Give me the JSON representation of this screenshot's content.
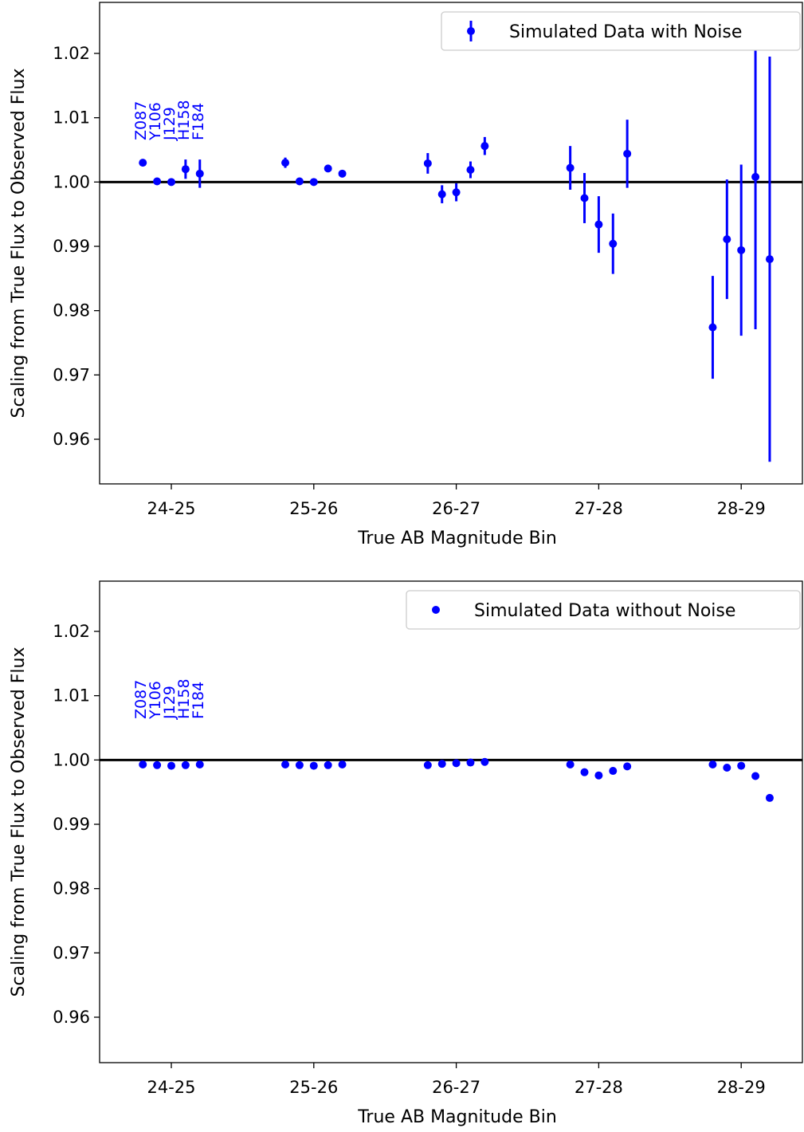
{
  "chart_data": [
    {
      "type": "scatter",
      "panel": "top",
      "xlabel": "True AB Magnitude Bin",
      "ylabel": "Scaling from True Flux to Observed Flux",
      "categories": [
        "24-25",
        "25-26",
        "26-27",
        "27-28",
        "28-29"
      ],
      "ylim": [
        0.955,
        1.0275
      ],
      "yticks": [
        0.96,
        0.97,
        0.98,
        0.99,
        1.0,
        1.01,
        1.02
      ],
      "ytick_labels": [
        "0.96",
        "0.97",
        "0.98",
        "0.99",
        "1.00",
        "1.01",
        "1.02"
      ],
      "reference_line": 1.0,
      "filter_labels": [
        "Z087",
        "Y106",
        "J129",
        "H158",
        "F184"
      ],
      "filter_offsets": [
        -0.2,
        -0.1,
        0.0,
        0.1,
        0.2
      ],
      "legend": {
        "label": "Simulated Data with Noise",
        "position": "top-right",
        "marker": "errorbar"
      },
      "color": "#0000ff",
      "series": [
        {
          "name": "Simulated Data with Noise",
          "points": [
            {
              "bin": "24-25",
              "filter": "Z087",
              "y": 1.003,
              "err": 0.0
            },
            {
              "bin": "24-25",
              "filter": "Y106",
              "y": 1.0001,
              "err": 0.0
            },
            {
              "bin": "24-25",
              "filter": "J129",
              "y": 1.0,
              "err": 0.0
            },
            {
              "bin": "24-25",
              "filter": "H158",
              "y": 1.002,
              "err": 0.0015
            },
            {
              "bin": "24-25",
              "filter": "F184",
              "y": 1.0013,
              "err": 0.0022
            },
            {
              "bin": "25-26",
              "filter": "Z087",
              "y": 1.003,
              "err": 0.0008
            },
            {
              "bin": "25-26",
              "filter": "Y106",
              "y": 1.0001,
              "err": 0.0
            },
            {
              "bin": "25-26",
              "filter": "J129",
              "y": 1.0,
              "err": 0.0
            },
            {
              "bin": "25-26",
              "filter": "H158",
              "y": 1.0021,
              "err": 0.0005
            },
            {
              "bin": "25-26",
              "filter": "F184",
              "y": 1.0013,
              "err": 0.0005
            },
            {
              "bin": "26-27",
              "filter": "Z087",
              "y": 1.0029,
              "err": 0.0016
            },
            {
              "bin": "26-27",
              "filter": "Y106",
              "y": 0.9981,
              "err": 0.0014
            },
            {
              "bin": "26-27",
              "filter": "J129",
              "y": 0.9984,
              "err": 0.0014
            },
            {
              "bin": "26-27",
              "filter": "H158",
              "y": 1.0019,
              "err": 0.0013
            },
            {
              "bin": "26-27",
              "filter": "F184",
              "y": 1.0056,
              "err": 0.0014
            },
            {
              "bin": "27-28",
              "filter": "Z087",
              "y": 1.0022,
              "err": 0.0034
            },
            {
              "bin": "27-28",
              "filter": "Y106",
              "y": 0.9975,
              "err": 0.0039
            },
            {
              "bin": "27-28",
              "filter": "J129",
              "y": 0.9934,
              "err": 0.0044
            },
            {
              "bin": "27-28",
              "filter": "H158",
              "y": 0.9904,
              "err": 0.0047
            },
            {
              "bin": "27-28",
              "filter": "F184",
              "y": 1.0044,
              "err": 0.0053
            },
            {
              "bin": "28-29",
              "filter": "Z087",
              "y": 0.9774,
              "err": 0.008
            },
            {
              "bin": "28-29",
              "filter": "Y106",
              "y": 0.9911,
              "err": 0.0093
            },
            {
              "bin": "28-29",
              "filter": "J129",
              "y": 0.9894,
              "err": 0.0133
            },
            {
              "bin": "28-29",
              "filter": "H158",
              "y": 1.0008,
              "err": 0.0237
            },
            {
              "bin": "28-29",
              "filter": "F184",
              "y": 0.988,
              "err": 0.0315
            }
          ]
        }
      ]
    },
    {
      "type": "scatter",
      "panel": "bottom",
      "xlabel": "True AB Magnitude Bin",
      "ylabel": "Scaling from True Flux to Observed Flux",
      "categories": [
        "24-25",
        "25-26",
        "26-27",
        "27-28",
        "28-29"
      ],
      "ylim": [
        0.955,
        1.0275
      ],
      "yticks": [
        0.96,
        0.97,
        0.98,
        0.99,
        1.0,
        1.01,
        1.02
      ],
      "ytick_labels": [
        "0.96",
        "0.97",
        "0.98",
        "0.99",
        "1.00",
        "1.01",
        "1.02"
      ],
      "reference_line": 1.0,
      "filter_labels": [
        "Z087",
        "Y106",
        "J129",
        "H158",
        "F184"
      ],
      "filter_offsets": [
        -0.2,
        -0.1,
        0.0,
        0.1,
        0.2
      ],
      "legend": {
        "label": "Simulated Data without Noise",
        "position": "top-right",
        "marker": "dot"
      },
      "color": "#0000ff",
      "series": [
        {
          "name": "Simulated Data without Noise",
          "points": [
            {
              "bin": "24-25",
              "filter": "Z087",
              "y": 0.9993
            },
            {
              "bin": "24-25",
              "filter": "Y106",
              "y": 0.9992
            },
            {
              "bin": "24-25",
              "filter": "J129",
              "y": 0.9991
            },
            {
              "bin": "24-25",
              "filter": "H158",
              "y": 0.9992
            },
            {
              "bin": "24-25",
              "filter": "F184",
              "y": 0.9993
            },
            {
              "bin": "25-26",
              "filter": "Z087",
              "y": 0.9993
            },
            {
              "bin": "25-26",
              "filter": "Y106",
              "y": 0.9992
            },
            {
              "bin": "25-26",
              "filter": "J129",
              "y": 0.9991
            },
            {
              "bin": "25-26",
              "filter": "H158",
              "y": 0.9992
            },
            {
              "bin": "25-26",
              "filter": "F184",
              "y": 0.9993
            },
            {
              "bin": "26-27",
              "filter": "Z087",
              "y": 0.9992
            },
            {
              "bin": "26-27",
              "filter": "Y106",
              "y": 0.9994
            },
            {
              "bin": "26-27",
              "filter": "J129",
              "y": 0.9995
            },
            {
              "bin": "26-27",
              "filter": "H158",
              "y": 0.9996
            },
            {
              "bin": "26-27",
              "filter": "F184",
              "y": 0.9997
            },
            {
              "bin": "27-28",
              "filter": "Z087",
              "y": 0.9993
            },
            {
              "bin": "27-28",
              "filter": "Y106",
              "y": 0.9981
            },
            {
              "bin": "27-28",
              "filter": "J129",
              "y": 0.9976
            },
            {
              "bin": "27-28",
              "filter": "H158",
              "y": 0.9983
            },
            {
              "bin": "27-28",
              "filter": "F184",
              "y": 0.999
            },
            {
              "bin": "28-29",
              "filter": "Z087",
              "y": 0.9993
            },
            {
              "bin": "28-29",
              "filter": "Y106",
              "y": 0.9988
            },
            {
              "bin": "28-29",
              "filter": "J129",
              "y": 0.9991
            },
            {
              "bin": "28-29",
              "filter": "H158",
              "y": 0.9975
            },
            {
              "bin": "28-29",
              "filter": "F184",
              "y": 0.9941
            }
          ]
        }
      ]
    }
  ]
}
